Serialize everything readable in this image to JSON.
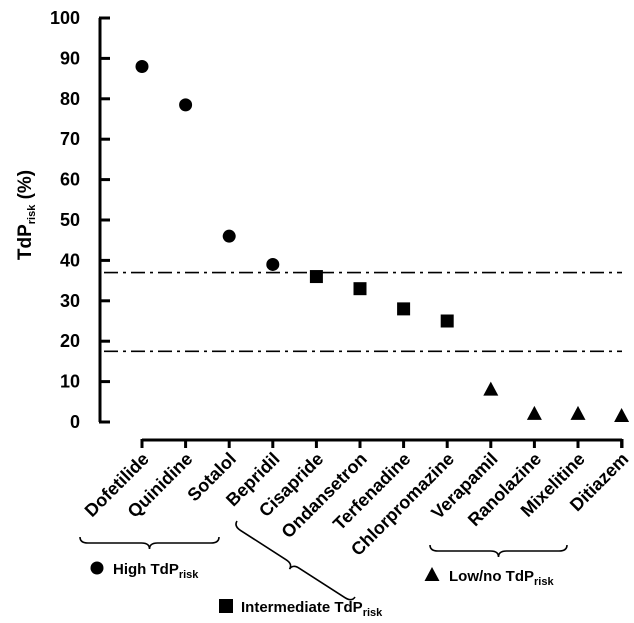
{
  "chart_data": {
    "type": "scatter",
    "ylabel": "TdP",
    "ylabel_sub": "risk",
    "ylabel_suffix": " (%)",
    "ylim": [
      0,
      100
    ],
    "yticks": [
      0,
      10,
      20,
      30,
      40,
      50,
      60,
      70,
      80,
      90,
      100
    ],
    "grid": false,
    "categories": [
      "Dofetilide",
      "Quinidine",
      "Sotalol",
      "Bepridil",
      "Cisapride",
      "Ondansetron",
      "Terfenadine",
      "Chlorpromazine",
      "Verapamil",
      "Ranolazine",
      "Mixelitine",
      "Ditiazem"
    ],
    "series": [
      {
        "name": "High TdP",
        "name_sub": "risk",
        "marker": "circle",
        "color": "#000000",
        "points": [
          {
            "x": "Dofetilide",
            "y": 88
          },
          {
            "x": "Quinidine",
            "y": 78.5
          },
          {
            "x": "Sotalol",
            "y": 46
          },
          {
            "x": "Bepridil",
            "y": 39
          }
        ]
      },
      {
        "name": "Intermediate TdP",
        "name_sub": "risk",
        "marker": "square",
        "color": "#000000",
        "points": [
          {
            "x": "Cisapride",
            "y": 36
          },
          {
            "x": "Ondansetron",
            "y": 33
          },
          {
            "x": "Terfenadine",
            "y": 28
          },
          {
            "x": "Chlorpromazine",
            "y": 25
          }
        ]
      },
      {
        "name": "Low/no TdP",
        "name_sub": "risk",
        "marker": "triangle",
        "color": "#000000",
        "points": [
          {
            "x": "Verapamil",
            "y": 8
          },
          {
            "x": "Ranolazine",
            "y": 2
          },
          {
            "x": "Mixelitine",
            "y": 2
          },
          {
            "x": "Ditiazem",
            "y": 1.5
          }
        ]
      }
    ],
    "thresholds": [
      37,
      17.5
    ],
    "threshold_style": "dash-dot"
  }
}
